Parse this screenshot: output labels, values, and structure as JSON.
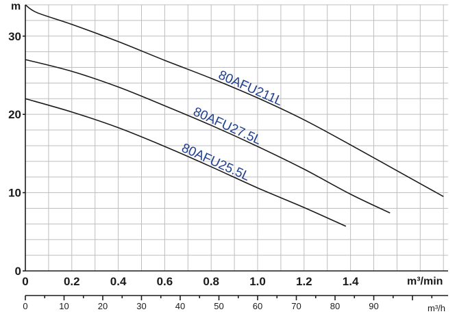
{
  "chart_data": {
    "type": "line",
    "ylabel": "m",
    "xlabel": "m³/min",
    "xlabel_secondary": "m³/h",
    "xlim": [
      0,
      1.82
    ],
    "ylim": [
      0,
      34
    ],
    "x_ticks": [
      "0",
      "0.2",
      "0.4",
      "0.6",
      "0.8",
      "1.0",
      "1.2",
      "1.4"
    ],
    "y_ticks": [
      "0",
      "10",
      "20",
      "30"
    ],
    "secondary_x_ticks": [
      "0",
      "10",
      "20",
      "30",
      "40",
      "50",
      "60",
      "70",
      "80",
      "90"
    ],
    "grid": true,
    "label_color": "#1f3f8f",
    "series": [
      {
        "name": "80AFU211L",
        "x": [
          0,
          0.05,
          0.2,
          0.4,
          0.6,
          0.8,
          1.0,
          1.2,
          1.4,
          1.6,
          1.8
        ],
        "y": [
          34,
          33,
          31.5,
          29.3,
          26.9,
          24.6,
          22.1,
          19.3,
          16.1,
          12.8,
          9.5
        ]
      },
      {
        "name": "80AFU27.5L",
        "x": [
          0,
          0.2,
          0.4,
          0.6,
          0.8,
          1.0,
          1.2,
          1.4,
          1.57
        ],
        "y": [
          27,
          25.5,
          23.5,
          21.1,
          18.6,
          15.9,
          13.0,
          9.8,
          7.4
        ]
      },
      {
        "name": "80AFU25.5L",
        "x": [
          0,
          0.2,
          0.4,
          0.6,
          0.8,
          1.0,
          1.2,
          1.38
        ],
        "y": [
          22,
          20.3,
          18.3,
          15.9,
          13.3,
          10.6,
          8.1,
          5.7
        ]
      }
    ]
  }
}
